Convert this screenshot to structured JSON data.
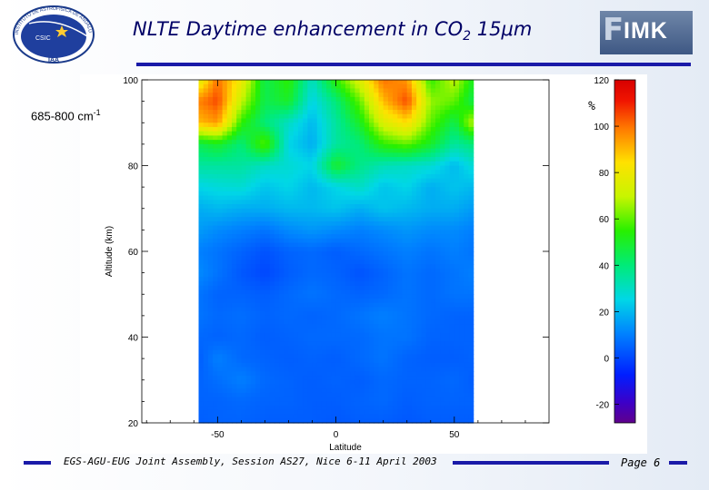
{
  "slide": {
    "title_main": "NLTE Daytime enhancement in CO",
    "title_sub": "2",
    "title_tail": " 15μm",
    "band_main": "685-800 cm",
    "band_exp": "-1",
    "footer": "EGS-AGU-EUG Joint Assembly, Session AS27, Nice 6-11 April 2003",
    "page": "Page 6",
    "logos": {
      "left_institute": "INSTITUTO DE ASTROFISICA DE ANDALUCIA",
      "left_csic": "CSIC",
      "left_iaa": "IAA",
      "right": "IMK"
    },
    "colors": {
      "rule": "#1a1aa8",
      "title": "#000066"
    }
  },
  "chart_data": {
    "type": "heatmap",
    "title": "",
    "xlabel": "Latitude",
    "ylabel": "Altitude (km)",
    "colorbar_label": "%",
    "xlim": [
      -82,
      90
    ],
    "data_lat_range": [
      -58,
      58
    ],
    "ylim": [
      20,
      100
    ],
    "x_ticks": [
      -50,
      0,
      50
    ],
    "y_ticks": [
      20,
      40,
      60,
      80,
      100
    ],
    "colorbar_ticks": [
      -20,
      0,
      20,
      40,
      60,
      80,
      100,
      120
    ],
    "clim": [
      -28,
      120
    ],
    "grid": false,
    "lat": [
      -58,
      -50,
      -40,
      -30,
      -20,
      -10,
      0,
      10,
      20,
      30,
      40,
      50,
      58
    ],
    "alt": [
      100,
      95,
      90,
      85,
      80,
      75,
      70,
      65,
      60,
      55,
      50,
      45,
      40,
      35,
      30,
      25,
      20
    ],
    "z": [
      [
        75,
        100,
        80,
        45,
        55,
        30,
        55,
        75,
        100,
        95,
        55,
        70,
        50
      ],
      [
        98,
        105,
        70,
        45,
        50,
        25,
        40,
        60,
        90,
        105,
        65,
        60,
        45
      ],
      [
        90,
        95,
        55,
        40,
        30,
        20,
        35,
        50,
        75,
        85,
        60,
        45,
        70
      ],
      [
        45,
        50,
        40,
        60,
        25,
        18,
        35,
        40,
        55,
        60,
        50,
        35,
        40
      ],
      [
        35,
        35,
        35,
        30,
        28,
        25,
        50,
        38,
        32,
        30,
        28,
        20,
        28
      ],
      [
        25,
        27,
        28,
        22,
        25,
        20,
        25,
        30,
        22,
        25,
        18,
        22,
        20
      ],
      [
        18,
        20,
        18,
        18,
        20,
        20,
        22,
        18,
        22,
        20,
        18,
        18,
        15
      ],
      [
        15,
        12,
        10,
        8,
        12,
        14,
        12,
        10,
        12,
        14,
        12,
        12,
        10
      ],
      [
        10,
        8,
        5,
        2,
        5,
        6,
        4,
        6,
        8,
        10,
        8,
        10,
        8
      ],
      [
        12,
        8,
        3,
        0,
        4,
        6,
        5,
        2,
        5,
        8,
        6,
        8,
        10
      ],
      [
        8,
        5,
        5,
        4,
        6,
        8,
        6,
        5,
        6,
        8,
        6,
        8,
        8
      ],
      [
        8,
        6,
        7,
        5,
        6,
        5,
        6,
        8,
        10,
        8,
        6,
        5,
        5
      ],
      [
        6,
        5,
        6,
        4,
        5,
        6,
        6,
        6,
        8,
        8,
        5,
        5,
        5
      ],
      [
        4,
        10,
        6,
        5,
        4,
        5,
        4,
        6,
        8,
        5,
        4,
        4,
        5
      ],
      [
        5,
        7,
        10,
        6,
        5,
        4,
        5,
        4,
        6,
        5,
        5,
        6,
        4
      ],
      [
        5,
        5,
        6,
        5,
        5,
        4,
        4,
        5,
        6,
        4,
        5,
        5,
        5
      ],
      [
        4,
        5,
        5,
        4,
        4,
        4,
        3,
        4,
        4,
        3,
        4,
        4,
        4
      ]
    ]
  }
}
